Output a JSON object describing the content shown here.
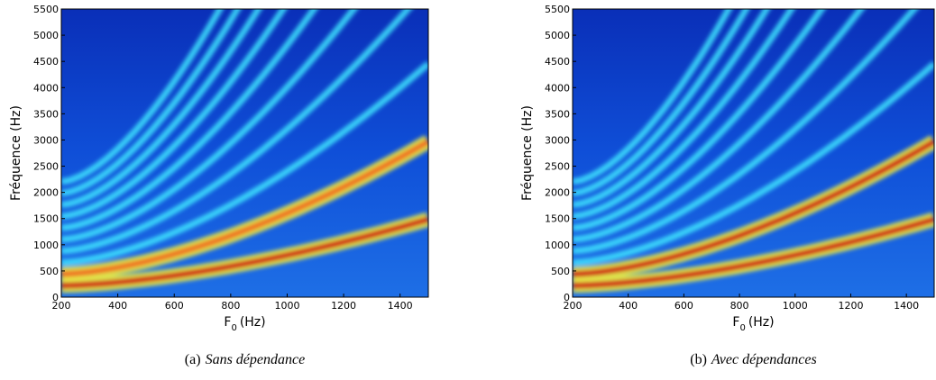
{
  "chart_data": [
    {
      "type": "heatmap",
      "xlabel": {
        "text": "F",
        "subscript": "0",
        "unit": "(Hz)"
      },
      "ylabel": "Fréquence (Hz)",
      "xlim": [
        200,
        1500
      ],
      "ylim": [
        0,
        5500
      ],
      "xticks": [
        200,
        400,
        600,
        800,
        1000,
        1200,
        1400
      ],
      "yticks": [
        0,
        500,
        1000,
        1500,
        2000,
        2500,
        3000,
        3500,
        4000,
        4500,
        5000,
        5500
      ],
      "caption": {
        "label": "(a)",
        "text": "Sans dépendance"
      }
    },
    {
      "type": "heatmap",
      "xlabel": {
        "text": "F",
        "subscript": "0",
        "unit": "(Hz)"
      },
      "ylabel": "Fréquence (Hz)",
      "xlim": [
        200,
        1500
      ],
      "ylim": [
        0,
        5500
      ],
      "xticks": [
        200,
        400,
        600,
        800,
        1000,
        1200,
        1400
      ],
      "yticks": [
        0,
        500,
        1000,
        1500,
        2000,
        2500,
        3000,
        3500,
        4000,
        4500,
        5000,
        5500
      ],
      "caption": {
        "label": "(b)",
        "text": "Avec dépendances"
      }
    }
  ]
}
